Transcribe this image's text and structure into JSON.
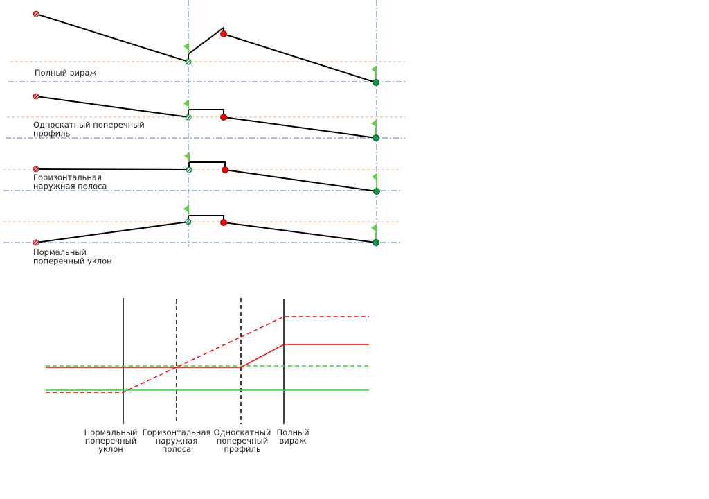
{
  "cross_sections": [
    {
      "label_lines": [
        "Полный вираж"
      ]
    },
    {
      "label_lines": [
        "Односкатный поперечный",
        "профиль"
      ]
    },
    {
      "label_lines": [
        "Горизонтальная",
        "наружная полоса"
      ]
    },
    {
      "label_lines": [
        "Нормальный",
        "поперечный уклон"
      ]
    }
  ],
  "transition_diagram": {
    "stations": [
      {
        "label_lines": [
          "Нормальный",
          "поперечный",
          "уклон"
        ],
        "line_style": "solid"
      },
      {
        "label_lines": [
          "Горизонтальная",
          "наружная",
          "полоса"
        ],
        "line_style": "dashed"
      },
      {
        "label_lines": [
          "Односкатный",
          "поперечный",
          "профиль"
        ],
        "line_style": "dashed"
      },
      {
        "label_lines": [
          "Полный",
          "вираж"
        ],
        "line_style": "solid"
      }
    ]
  },
  "colors": {
    "edge_red": "#ff0000",
    "green_line": "#22dd22",
    "flag_green": "#66cc44",
    "marker_green": "#0a9a3a",
    "orange_guide": "#f4b183",
    "blue_guide": "#4a7ebb"
  },
  "icons": [
    "hatched-red-marker",
    "hatched-green-marker",
    "red-dot-marker",
    "green-dot-marker",
    "flag-icon"
  ]
}
